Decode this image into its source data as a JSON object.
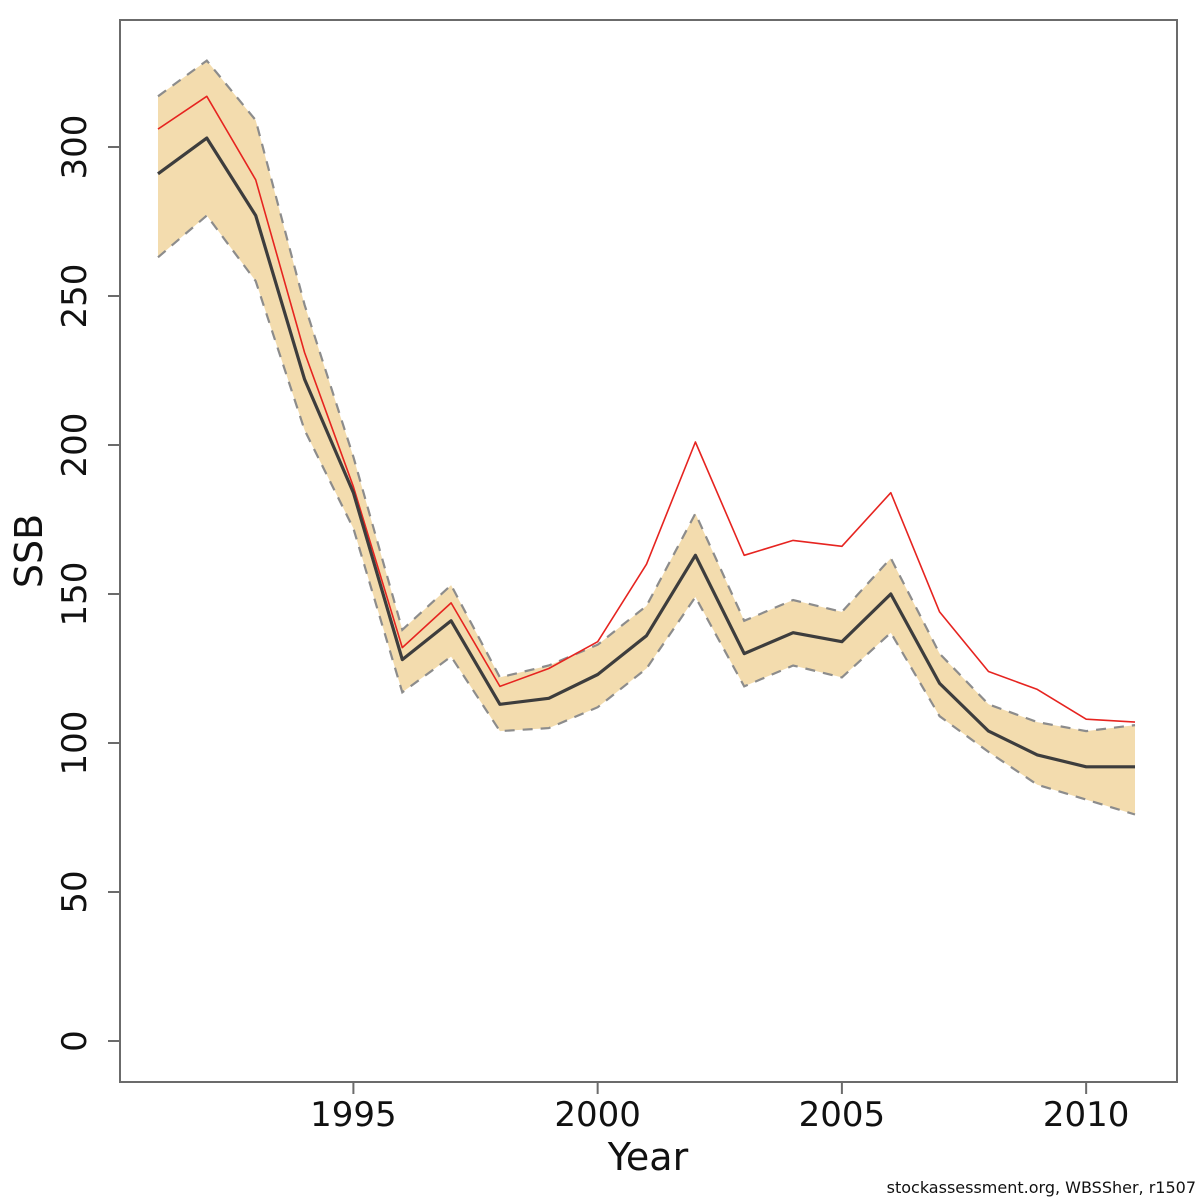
{
  "figure": {
    "footer": "stockassessment.org, WBSSher, r1507"
  },
  "chart_data": {
    "type": "line",
    "title": "",
    "xlabel": "Year",
    "ylabel": "SSB",
    "x_ticks": [
      1995,
      2000,
      2005,
      2010
    ],
    "y_ticks": [
      0,
      50,
      100,
      150,
      200,
      250,
      300
    ],
    "xlim": [
      1990.2,
      2011.9
    ],
    "ylim": [
      -14,
      343
    ],
    "grid": "off",
    "legend": "none",
    "x": [
      1991,
      1992,
      1993,
      1994,
      1995,
      1996,
      1997,
      1998,
      1999,
      2000,
      2001,
      2002,
      2003,
      2004,
      2005,
      2006,
      2007,
      2008,
      2009,
      2010,
      2011
    ],
    "series": [
      {
        "name": "SSB estimate (black line)",
        "color": "#3d3d3d",
        "style": "solid",
        "width": 3.2,
        "values": [
          291,
          303,
          277,
          222,
          184,
          128,
          141,
          113,
          115,
          123,
          136,
          163,
          130,
          137,
          134,
          150,
          120,
          104,
          96,
          92,
          92
        ]
      },
      {
        "name": "red line",
        "color": "#e62420",
        "style": "solid",
        "width": 1.6,
        "values": [
          306,
          317,
          289,
          231,
          186,
          132,
          147,
          119,
          125,
          134,
          160,
          201,
          163,
          168,
          166,
          184,
          144,
          124,
          118,
          108,
          107
        ]
      }
    ],
    "band": {
      "name": "confidence band",
      "fill_color": "#f3dcae",
      "border_color": "#8c8c8c",
      "border_style": "dashed",
      "upper": [
        317,
        329,
        309,
        247,
        196,
        138,
        153,
        122,
        126,
        133,
        146,
        177,
        141,
        148,
        144,
        162,
        130,
        113,
        107,
        104,
        106
      ],
      "lower": [
        263,
        277,
        255,
        205,
        172,
        117,
        129,
        104,
        105,
        112,
        125,
        149,
        119,
        126,
        122,
        137,
        109,
        97,
        86,
        81,
        76
      ]
    },
    "colors": {
      "axis": "#6b6b6b",
      "text": "#111111",
      "background": "#ffffff"
    }
  }
}
